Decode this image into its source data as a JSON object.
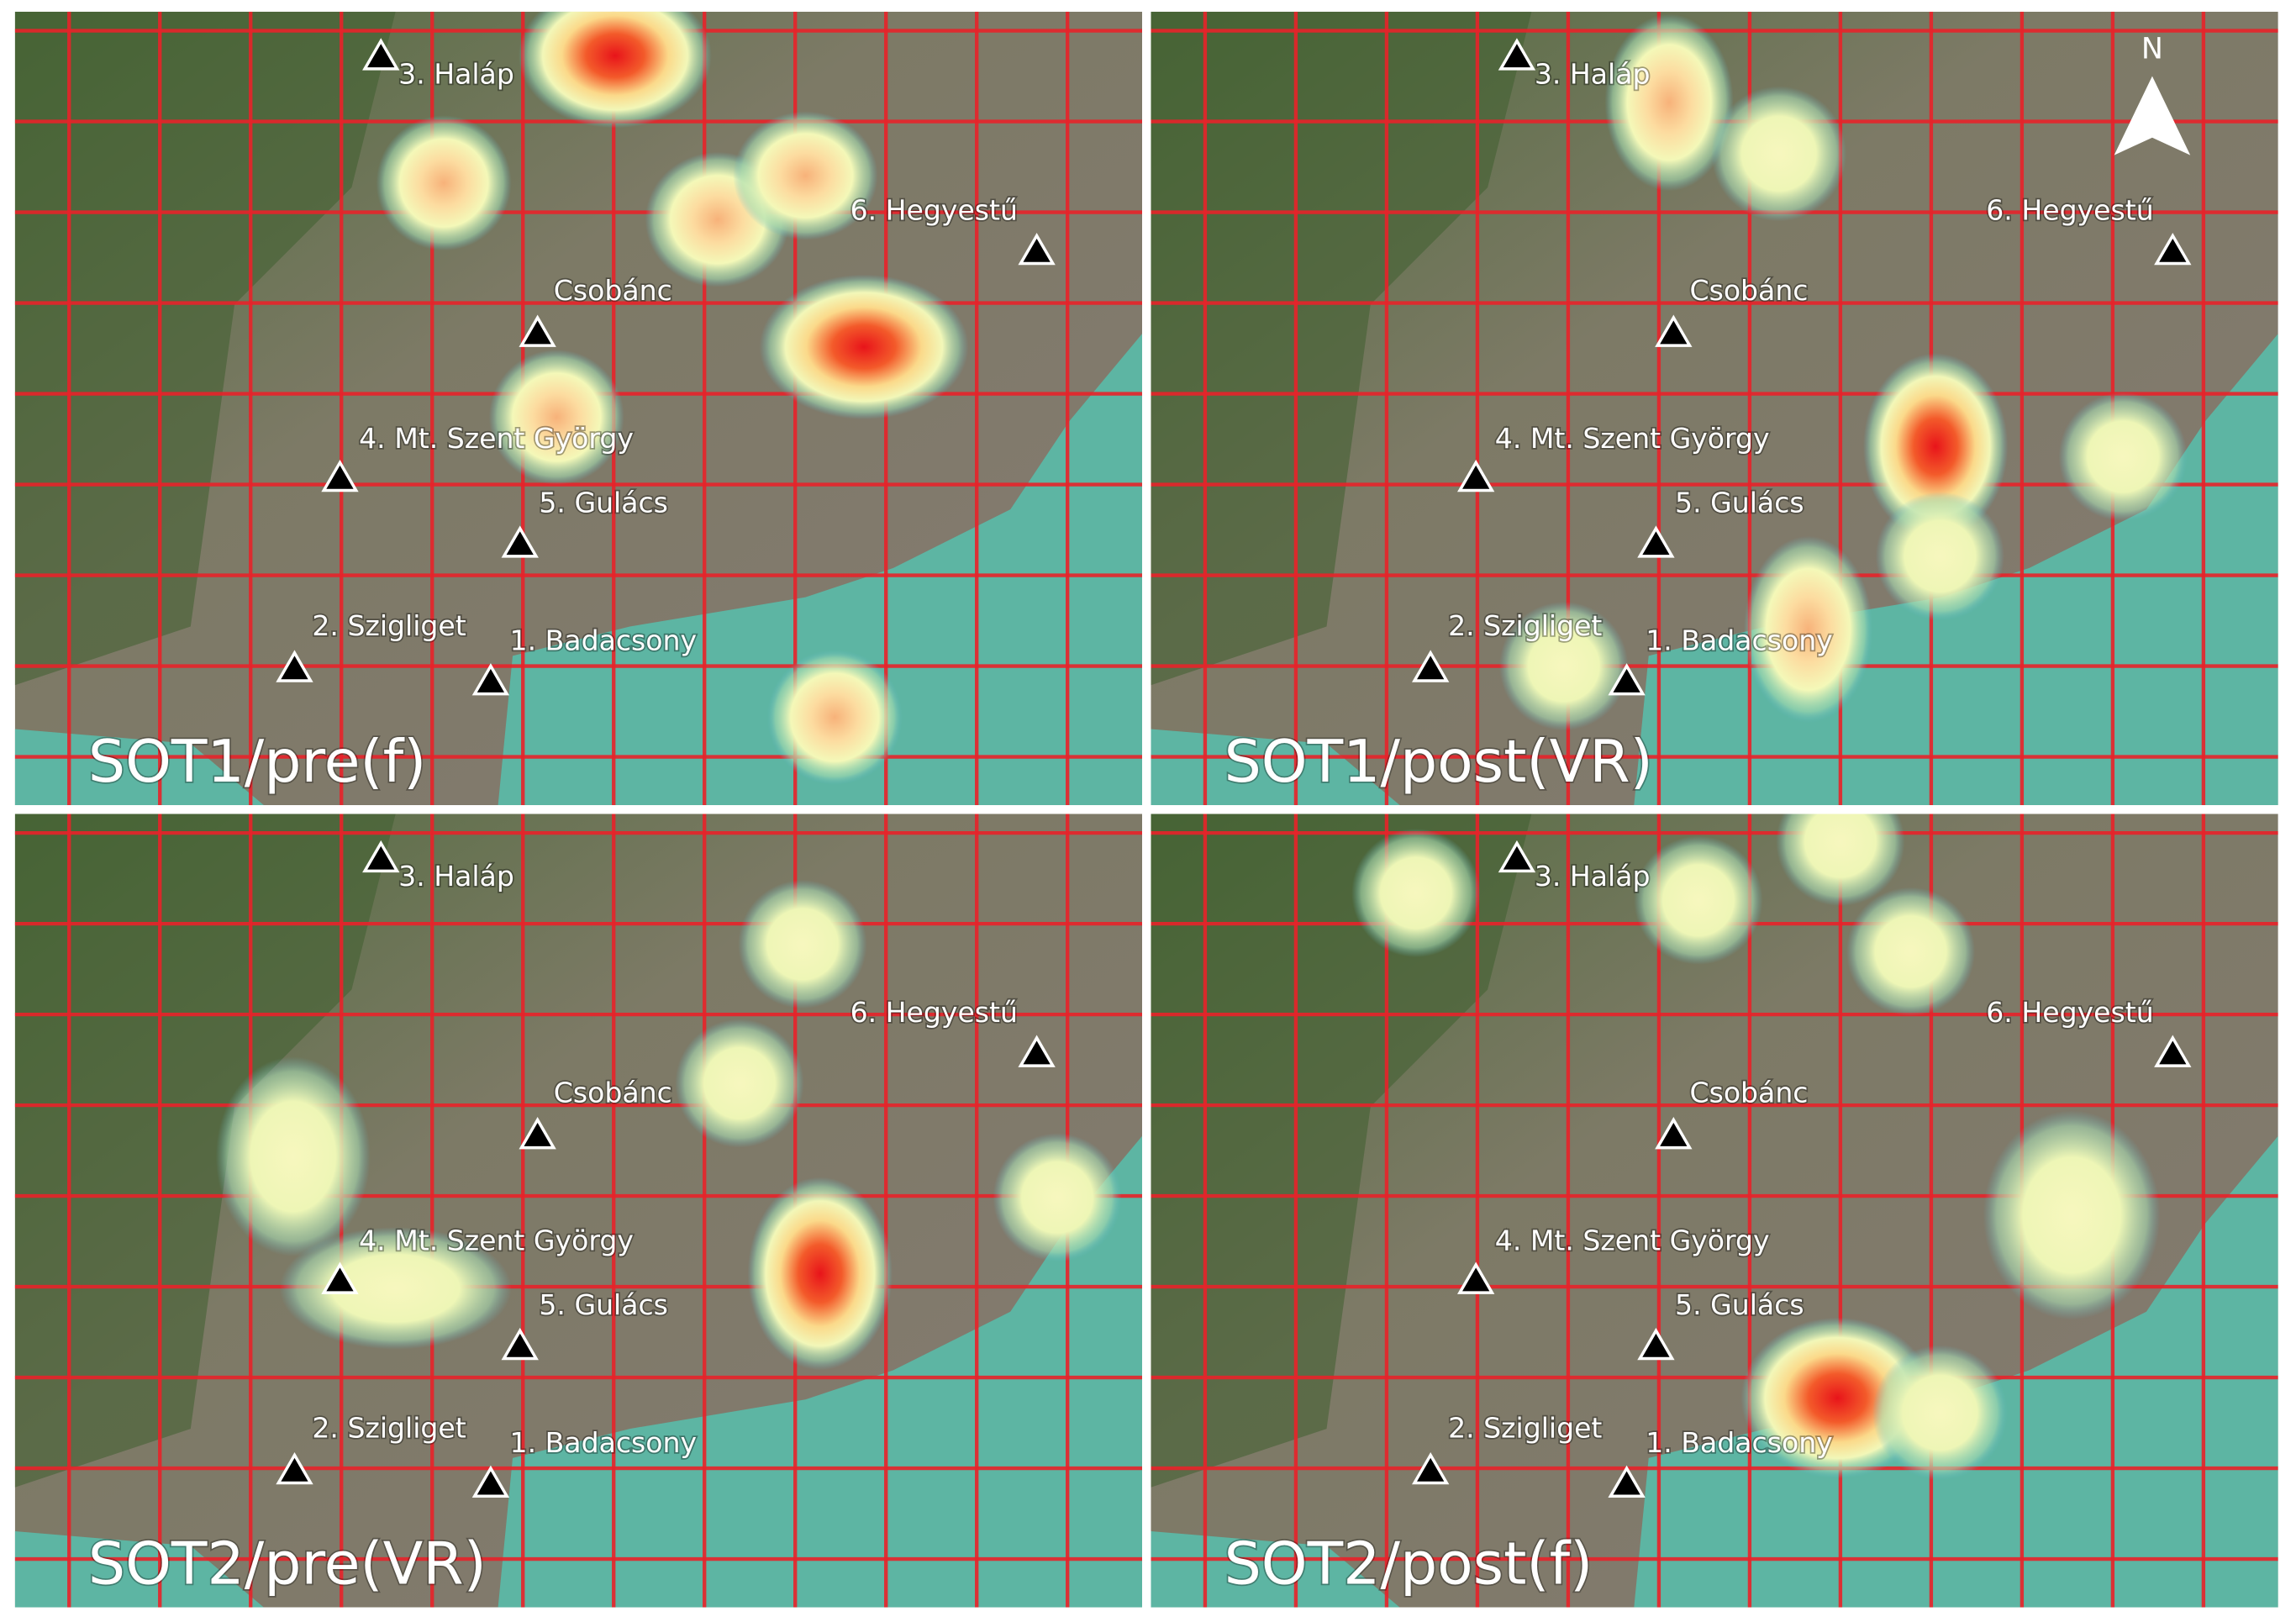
{
  "panels": [
    "SOT1/pre(f)",
    "SOT1/post(VR)",
    "SOT2/pre(VR)",
    "SOT2/post(f)"
  ],
  "peaks": [
    "1. Badacsony",
    "2. Szigliget",
    "3. Haláp",
    "4. Mt. Szent György",
    "5. Gulács",
    "6. Hegyestű",
    "Csobánc"
  ],
  "north": "N"
}
